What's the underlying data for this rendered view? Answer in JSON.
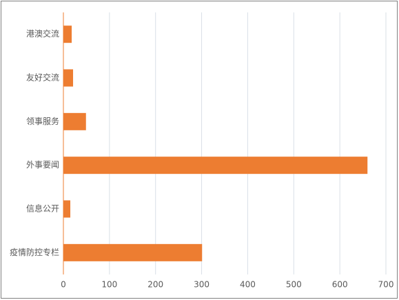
{
  "chart_data": {
    "type": "bar",
    "orientation": "horizontal",
    "categories": [
      "港澳交流",
      "友好交流",
      "领事服务",
      "外事要闻",
      "信息公开",
      "疫情防控专栏"
    ],
    "values": [
      18,
      21,
      49,
      660,
      15,
      301
    ],
    "color": "#ed7d31",
    "xlim": [
      0,
      700
    ],
    "xticks": [
      0,
      100,
      200,
      300,
      400,
      500,
      600,
      700
    ],
    "grid": true
  }
}
